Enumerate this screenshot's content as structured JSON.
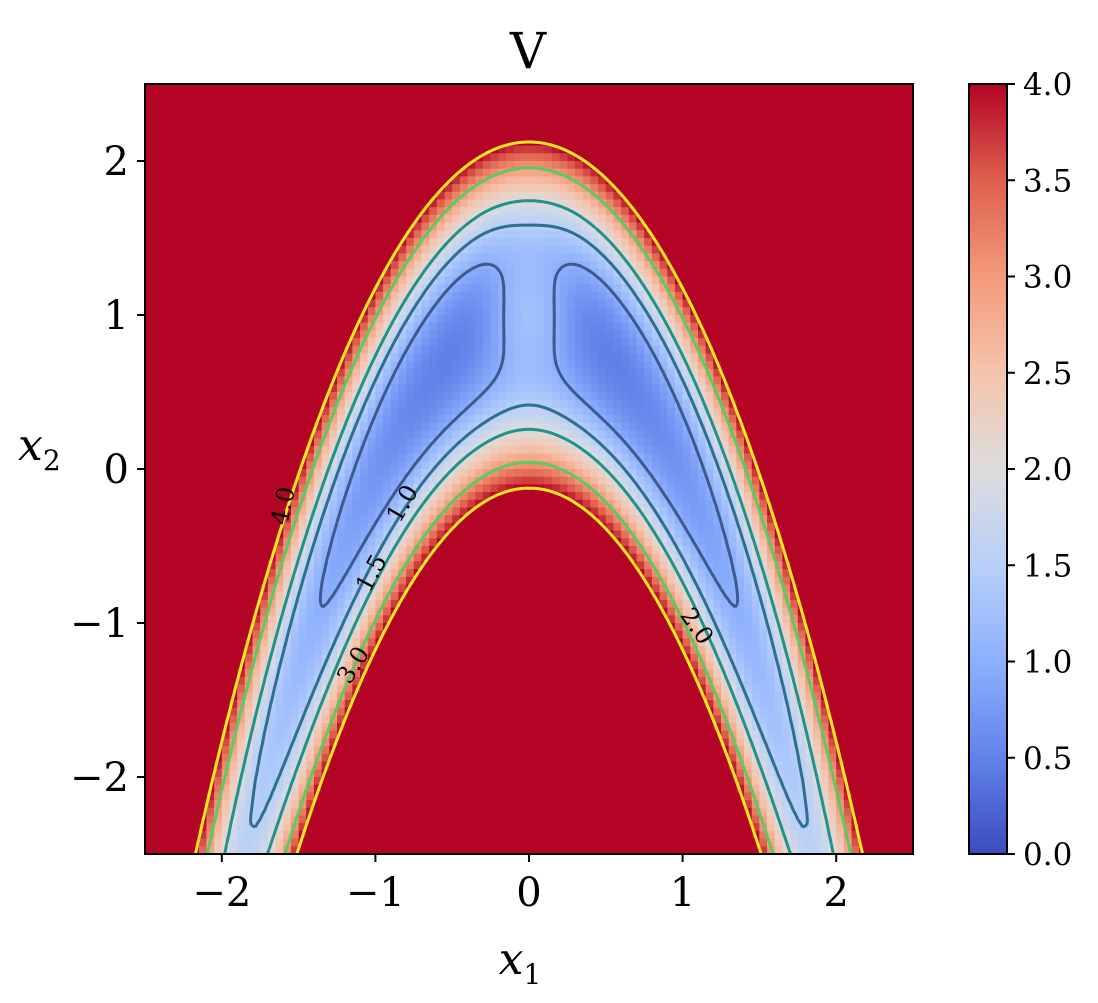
{
  "chart_data": {
    "type": "heatmap",
    "title": "V",
    "xlabel": "x",
    "xlabel_sub": "1",
    "ylabel": "x",
    "ylabel_sub": "2",
    "xlim": [
      -2.5,
      2.5
    ],
    "ylim": [
      -2.5,
      2.5
    ],
    "xticks": [
      -2,
      -1,
      0,
      1,
      2
    ],
    "xtick_labels": [
      "−2",
      "−1",
      "0",
      "1",
      "2"
    ],
    "yticks": [
      -2,
      -1,
      0,
      1,
      2
    ],
    "ytick_labels": [
      "−2",
      "−1",
      "0",
      "1",
      "2"
    ],
    "colormap": "coolwarm",
    "color_low": "#3b4cc0",
    "color_mid": "#dddcdc",
    "color_high": "#b40426",
    "colorbar": {
      "vmin": 0.0,
      "vmax": 4.0,
      "ticks": [
        0.0,
        0.5,
        1.0,
        1.5,
        2.0,
        2.5,
        3.0,
        3.5,
        4.0
      ],
      "tick_labels": [
        "0.0",
        "0.5",
        "1.0",
        "1.5",
        "2.0",
        "2.5",
        "3.0",
        "3.5",
        "4.0"
      ],
      "placement": "right"
    },
    "field": "V(x1,x2) = 0.5*(x1^2 + 2(x2-1+x1^2)^2 + 2*sqrt(...) ...) shaped banana valley centered near x2 = 1 - x1^2",
    "contour_levels": [
      {
        "level": 1.0,
        "label": "1.0",
        "color": "#3e5a8c"
      },
      {
        "level": 1.5,
        "label": "1.5",
        "color": "#2d6f8e"
      },
      {
        "level": 2.0,
        "label": "2.0",
        "color": "#21918c"
      },
      {
        "level": 3.0,
        "label": "3.0",
        "color": "#5ec962"
      },
      {
        "level": 4.0,
        "label": "4.0",
        "color": "#fde725"
      }
    ]
  }
}
